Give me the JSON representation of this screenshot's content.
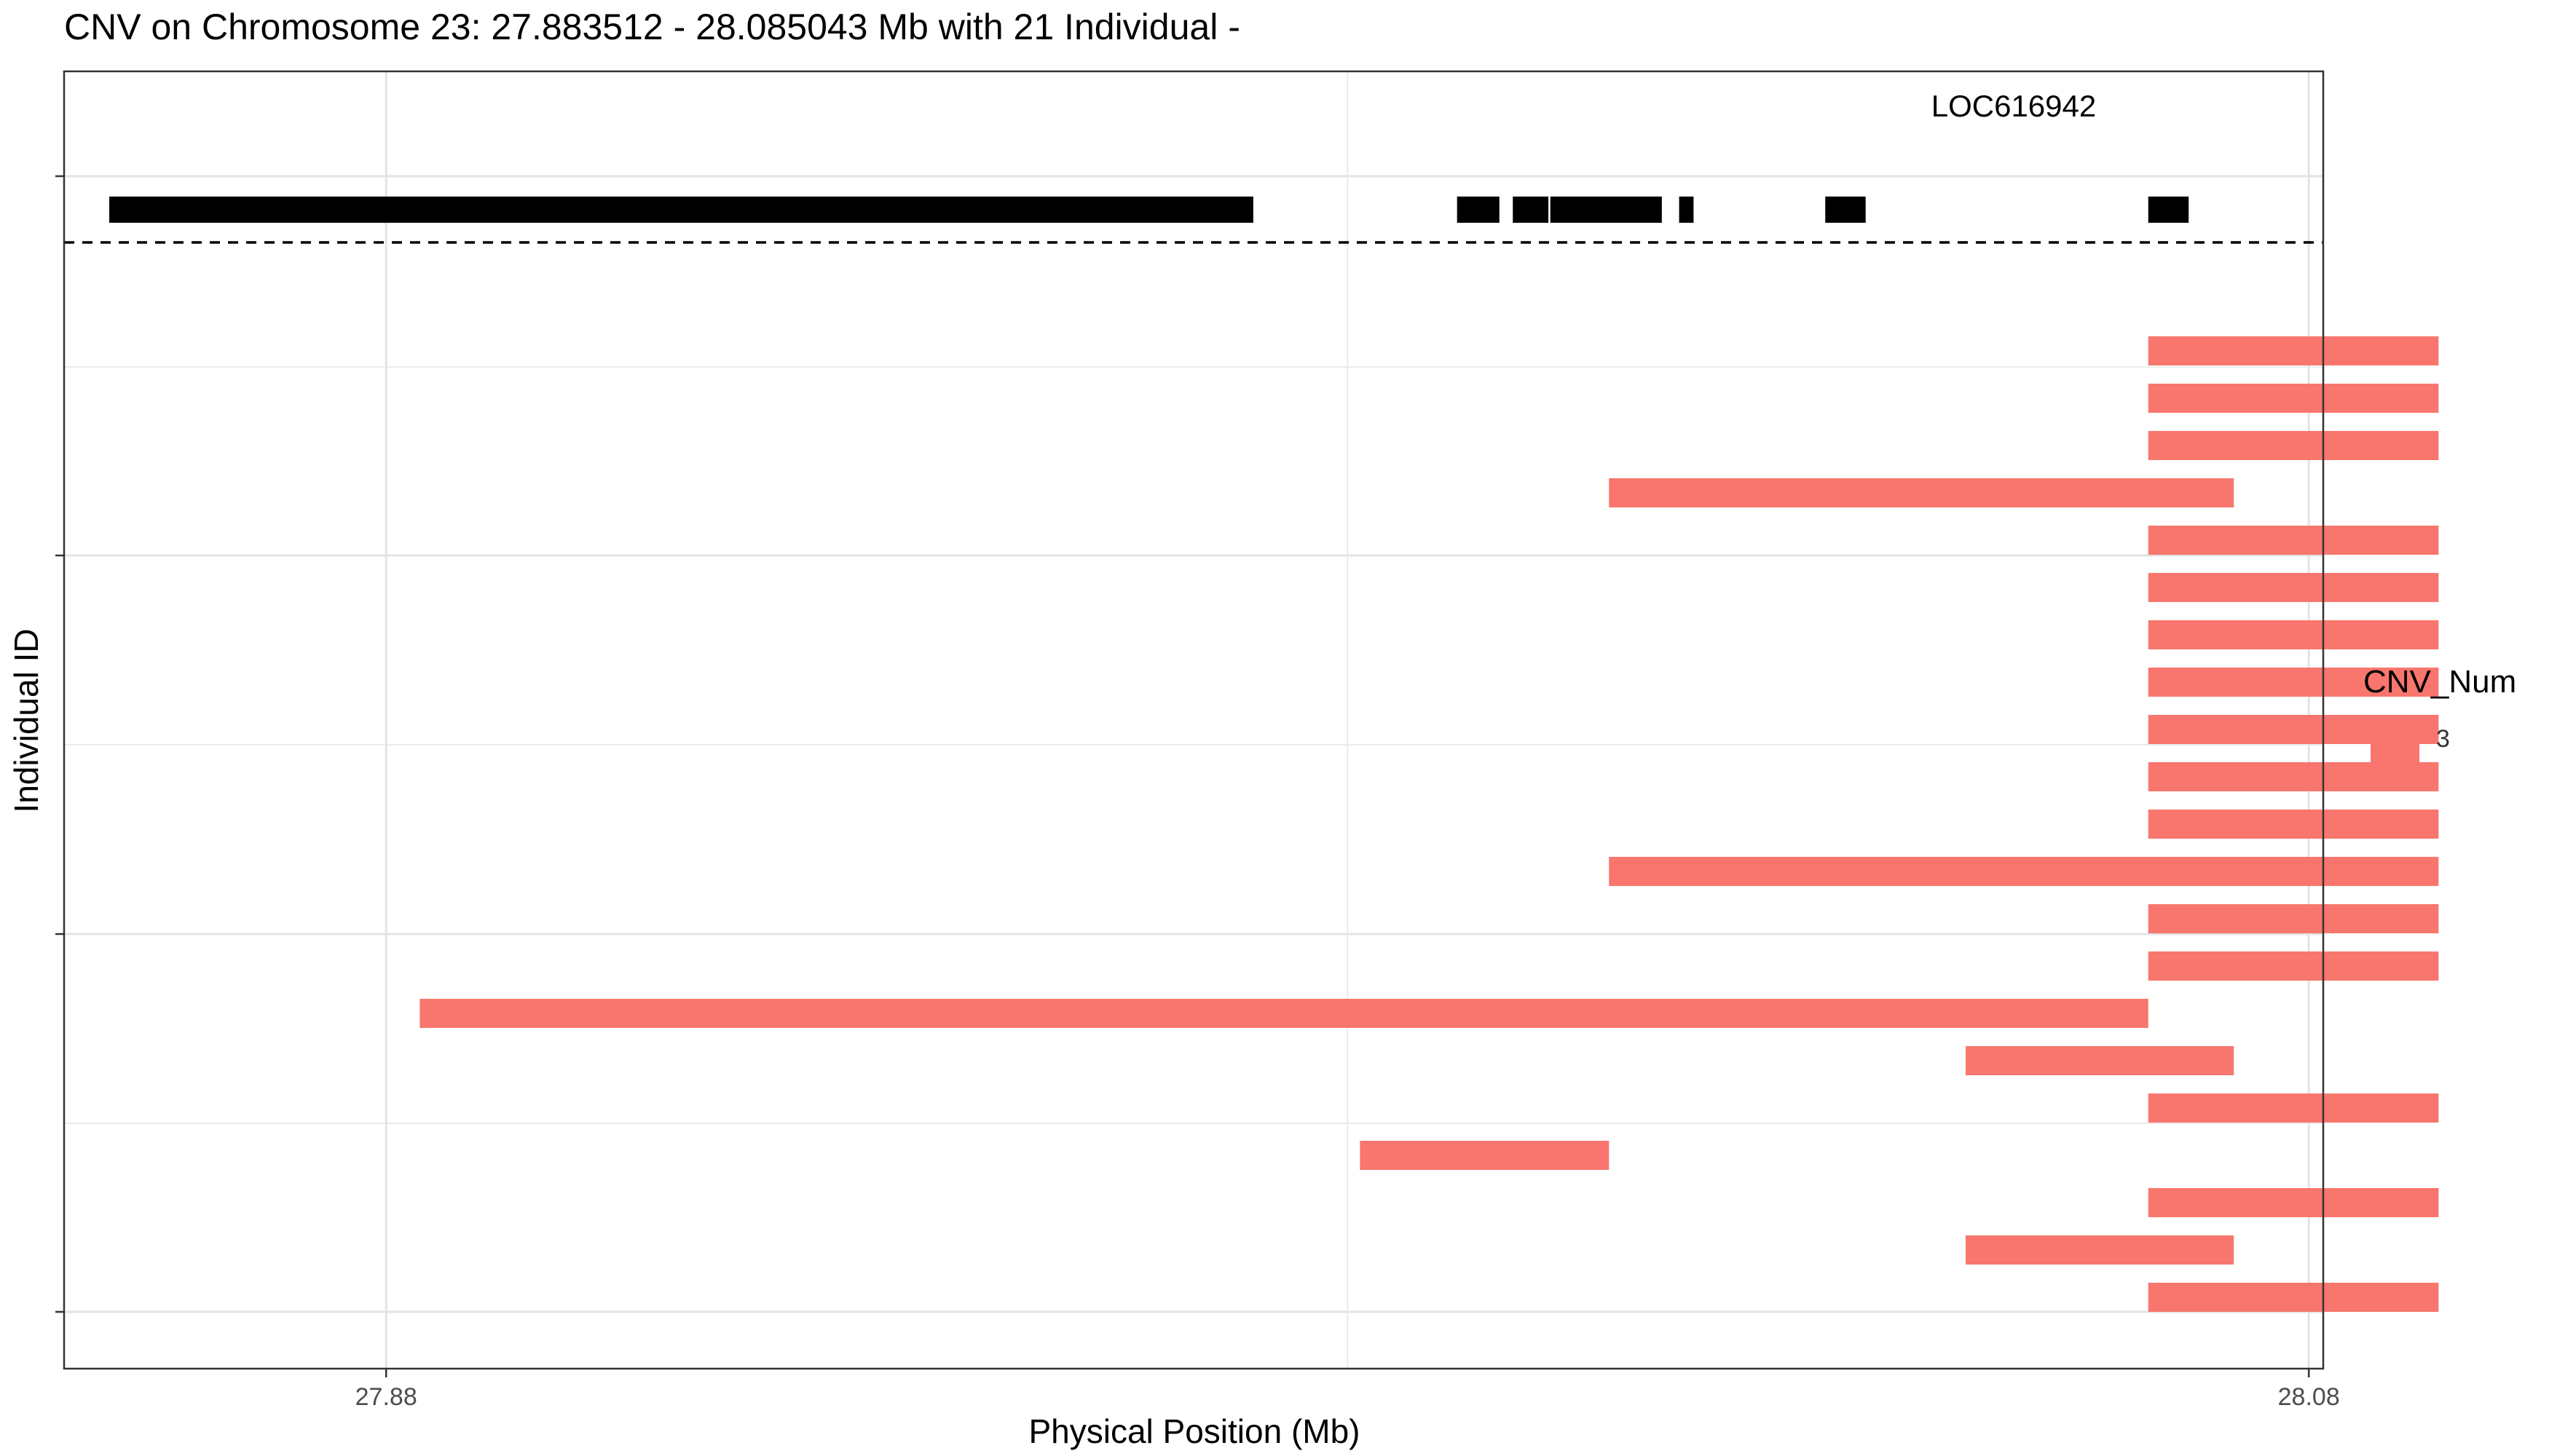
{
  "title": "CNV on Chromosome 23: 27.883512 - 28.085043 Mb with 21 Individual -",
  "chart_data": {
    "type": "bar",
    "xlabel": "Physical Position (Mb)",
    "ylabel": "Individual ID",
    "xlim": [
      27.8465,
      28.0815
    ],
    "x_ticks": [
      27.88,
      28.08
    ],
    "x_tick_labels": [
      "27.88",
      "28.08"
    ],
    "grid": true,
    "legend_placement": "right",
    "legend": {
      "title": "CNV_Num",
      "entries": [
        {
          "label": "3",
          "color": "#F8766D"
        }
      ]
    },
    "gene_track": {
      "gene_label": "LOC616942",
      "segments": [
        [
          27.8512,
          27.9702
        ],
        [
          27.9914,
          27.9958
        ],
        [
          27.9972,
          28.0009
        ],
        [
          28.0011,
          28.0127
        ],
        [
          28.0145,
          28.016
        ],
        [
          28.0297,
          28.0339
        ],
        [
          28.0633,
          28.0675
        ]
      ]
    },
    "cnv_segments": [
      {
        "start": 28.0633,
        "end": 28.0935,
        "cnv": 3
      },
      {
        "start": 28.0633,
        "end": 28.0935,
        "cnv": 3
      },
      {
        "start": 28.0633,
        "end": 28.0935,
        "cnv": 3
      },
      {
        "start": 28.0072,
        "end": 28.0722,
        "cnv": 3
      },
      {
        "start": 28.0633,
        "end": 28.0935,
        "cnv": 3
      },
      {
        "start": 28.0633,
        "end": 28.0935,
        "cnv": 3
      },
      {
        "start": 28.0633,
        "end": 28.0935,
        "cnv": 3
      },
      {
        "start": 28.0633,
        "end": 28.0935,
        "cnv": 3
      },
      {
        "start": 28.0633,
        "end": 28.0935,
        "cnv": 3
      },
      {
        "start": 28.0633,
        "end": 28.0935,
        "cnv": 3
      },
      {
        "start": 28.0633,
        "end": 28.0935,
        "cnv": 3
      },
      {
        "start": 28.0072,
        "end": 28.0935,
        "cnv": 3
      },
      {
        "start": 28.0633,
        "end": 28.0935,
        "cnv": 3
      },
      {
        "start": 28.0633,
        "end": 28.0935,
        "cnv": 3
      },
      {
        "start": 27.8835,
        "end": 28.0633,
        "cnv": 3
      },
      {
        "start": 28.0443,
        "end": 28.0722,
        "cnv": 3
      },
      {
        "start": 28.0633,
        "end": 28.0935,
        "cnv": 3
      },
      {
        "start": 27.9813,
        "end": 28.0072,
        "cnv": 3
      },
      {
        "start": 28.0633,
        "end": 28.0935,
        "cnv": 3
      },
      {
        "start": 28.0443,
        "end": 28.0722,
        "cnv": 3
      },
      {
        "start": 28.0633,
        "end": 28.0935,
        "cnv": 3
      }
    ]
  }
}
